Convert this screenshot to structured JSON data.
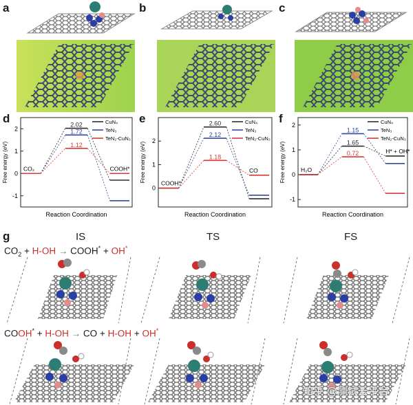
{
  "panel_labels": [
    "a",
    "b",
    "c",
    "d",
    "e",
    "f",
    "g"
  ],
  "legend": [
    "CuN₄",
    "TeN₃",
    "TeN₂-CuN₃"
  ],
  "series_colors": {
    "CuN4": "#2b2b2b",
    "TeN3": "#2f4a9c",
    "TeN2-CuN3": "#d63a35"
  },
  "axis_ylabel": "Free energy (eV)",
  "axis_xlabel": "Reaction Coordination",
  "chart_data": [
    {
      "panel": "d",
      "type": "line",
      "ylim": [
        -1.5,
        2.5
      ],
      "yticks": [
        -1,
        0,
        1,
        2
      ],
      "states": [
        "CO₂",
        "",
        "COOH*"
      ],
      "series": [
        {
          "name": "CuN₄",
          "values": [
            0,
            2.02,
            -0.3
          ]
        },
        {
          "name": "TeN₃",
          "values": [
            0,
            1.72,
            -1.22
          ]
        },
        {
          "name": "TeN₂-CuN₃",
          "values": [
            0,
            1.12,
            0.0
          ]
        }
      ],
      "labels": [
        "2.02",
        "1.72",
        "1.12"
      ]
    },
    {
      "panel": "e",
      "type": "line",
      "ylim": [
        -0.8,
        3.0
      ],
      "yticks": [
        0,
        1,
        2
      ],
      "states": [
        "COOH*",
        "",
        "CO"
      ],
      "series": [
        {
          "name": "CuN₄",
          "values": [
            0,
            2.6,
            -0.45
          ]
        },
        {
          "name": "TeN₃",
          "values": [
            0,
            2.12,
            -0.3
          ]
        },
        {
          "name": "TeN₂-CuN₃",
          "values": [
            0,
            1.18,
            0.55
          ]
        }
      ],
      "labels": [
        "2.60",
        "2.12",
        "1.18"
      ]
    },
    {
      "panel": "f",
      "type": "line",
      "ylim": [
        -1.3,
        2.3
      ],
      "yticks": [
        -1,
        0,
        1,
        2
      ],
      "states": [
        "H₂O",
        "",
        "H* + OH*"
      ],
      "series": [
        {
          "name": "CuN₄",
          "values": [
            0,
            1.15,
            0.75
          ]
        },
        {
          "name": "TeN₃",
          "values": [
            0,
            1.65,
            0.45
          ]
        },
        {
          "name": "TeN₂-CuN₃",
          "values": [
            0,
            0.72,
            -0.75
          ]
        }
      ],
      "labels": [
        "1.65",
        "1.15",
        "0.72"
      ]
    }
  ],
  "stage_labels": [
    "IS",
    "TS",
    "FS"
  ],
  "equation1": {
    "a": "CO",
    "a_sub": "2",
    "plus1": " + ",
    "b": "H-OH",
    "arrow": " → ",
    "c": "COOH",
    "c_star": "*",
    "plus2": " + ",
    "d": "OH",
    "d_star": "*"
  },
  "equation2": {
    "a": "CO",
    "a_red": "OH",
    "a_star": "*",
    "plus1": " + ",
    "b": "H-OH",
    "arrow": " → ",
    "c": "CO",
    "plus2": " + ",
    "d": "H-OH",
    "plus3": " + ",
    "e": "OH",
    "e_star": "*"
  },
  "watermark": "知乎 @测试云平台"
}
